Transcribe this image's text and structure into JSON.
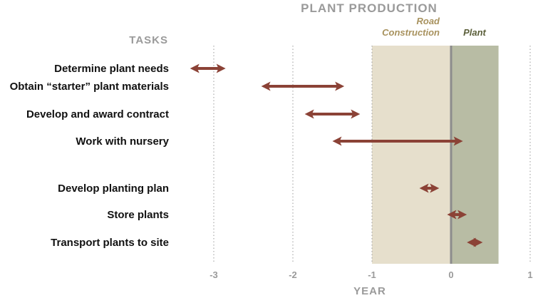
{
  "chart_data": {
    "type": "range",
    "title": "PLANT PRODUCTION",
    "category_axis_label": "TASKS",
    "xlabel": "YEAR",
    "xlim": [
      -3.4,
      1
    ],
    "x_ticks": [
      -3,
      -2,
      -1,
      0,
      1
    ],
    "x_tick_labels": [
      "-3",
      "-2",
      "-1",
      "0",
      "1"
    ],
    "grid": "vertical dotted",
    "regions": [
      {
        "name": "Road Construction",
        "start": -1,
        "end": 0,
        "color": "#e6dfcc",
        "label_color": "#a8925e"
      },
      {
        "name": "Plant",
        "start": 0,
        "end": 0.6,
        "color": "#b8bca4",
        "label_color": "#5b5f3a"
      }
    ],
    "tasks": [
      {
        "label": "Determine plant needs",
        "start": -3.3,
        "end": -2.85
      },
      {
        "label": "Obtain “starter” plant materials",
        "start": -2.4,
        "end": -1.35
      },
      {
        "label": "Develop and award contract",
        "start": -1.85,
        "end": -1.15
      },
      {
        "label": "Work with nursery",
        "start": -1.5,
        "end": 0.15
      },
      {
        "label": "Develop planting plan",
        "start": -0.4,
        "end": -0.15
      },
      {
        "label": "Store plants",
        "start": -0.05,
        "end": 0.2
      },
      {
        "label": "Transport plants to site",
        "start": 0.2,
        "end": 0.4
      }
    ],
    "arrow_color": "#8b4236",
    "zero_line_color": "#8c8c8c"
  }
}
